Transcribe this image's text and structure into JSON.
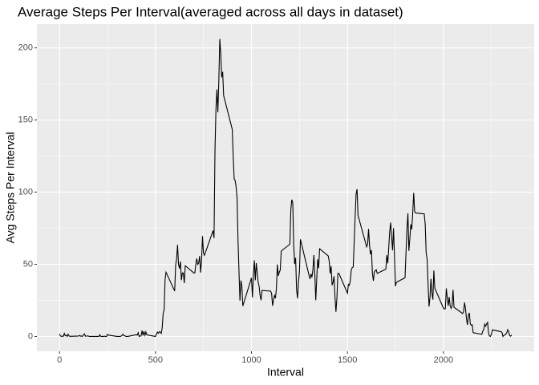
{
  "chart_data": {
    "type": "line",
    "title": "Average Steps Per Interval(averaged across all days in dataset)",
    "x_label": "Interval",
    "y_label": "Avg Steps Per Interval",
    "x": [
      0,
      5,
      10,
      15,
      20,
      25,
      30,
      35,
      40,
      45,
      50,
      55,
      100,
      105,
      110,
      115,
      120,
      125,
      130,
      135,
      140,
      145,
      150,
      155,
      200,
      205,
      210,
      215,
      220,
      225,
      230,
      235,
      240,
      245,
      250,
      255,
      300,
      305,
      310,
      315,
      320,
      325,
      330,
      335,
      340,
      345,
      350,
      355,
      400,
      405,
      410,
      415,
      420,
      425,
      430,
      435,
      440,
      445,
      450,
      455,
      500,
      505,
      510,
      515,
      520,
      525,
      530,
      535,
      540,
      545,
      550,
      555,
      600,
      605,
      610,
      615,
      620,
      625,
      630,
      635,
      640,
      645,
      650,
      655,
      700,
      705,
      710,
      715,
      720,
      725,
      730,
      735,
      740,
      745,
      750,
      755,
      800,
      805,
      810,
      815,
      820,
      825,
      830,
      835,
      840,
      845,
      850,
      855,
      900,
      905,
      910,
      915,
      920,
      925,
      930,
      935,
      940,
      945,
      950,
      955,
      1000,
      1005,
      1010,
      1015,
      1020,
      1025,
      1030,
      1035,
      1040,
      1045,
      1050,
      1055,
      1100,
      1105,
      1110,
      1115,
      1120,
      1125,
      1130,
      1135,
      1140,
      1145,
      1150,
      1155,
      1200,
      1205,
      1210,
      1215,
      1220,
      1225,
      1230,
      1235,
      1240,
      1245,
      1250,
      1255,
      1300,
      1305,
      1310,
      1315,
      1320,
      1325,
      1330,
      1335,
      1340,
      1345,
      1350,
      1355,
      1400,
      1405,
      1410,
      1415,
      1420,
      1425,
      1430,
      1435,
      1440,
      1445,
      1450,
      1455,
      1500,
      1505,
      1510,
      1515,
      1520,
      1525,
      1530,
      1535,
      1540,
      1545,
      1550,
      1555,
      1600,
      1605,
      1610,
      1615,
      1620,
      1625,
      1630,
      1635,
      1640,
      1645,
      1650,
      1655,
      1700,
      1705,
      1710,
      1715,
      1720,
      1725,
      1730,
      1735,
      1740,
      1745,
      1750,
      1755,
      1800,
      1805,
      1810,
      1815,
      1820,
      1825,
      1830,
      1835,
      1840,
      1845,
      1850,
      1855,
      1900,
      1905,
      1910,
      1915,
      1920,
      1925,
      1930,
      1935,
      1940,
      1945,
      1950,
      1955,
      2000,
      2005,
      2010,
      2015,
      2020,
      2025,
      2030,
      2035,
      2040,
      2045,
      2050,
      2055,
      2100,
      2105,
      2110,
      2115,
      2120,
      2125,
      2130,
      2135,
      2140,
      2145,
      2150,
      2155,
      2200,
      2205,
      2210,
      2215,
      2220,
      2225,
      2230,
      2235,
      2240,
      2245,
      2250,
      2255,
      2300,
      2305,
      2310,
      2315,
      2320,
      2325,
      2330,
      2335,
      2340,
      2345,
      2350,
      2355
    ],
    "series": [
      {
        "color": "#000000",
        "values": [
          1.7,
          0.3,
          0.1,
          0.2,
          0.1,
          2.1,
          0.5,
          0.9,
          0,
          1.5,
          0.3,
          0.1,
          0.3,
          0.7,
          0.2,
          0.3,
          0,
          1.1,
          1.8,
          0.2,
          0.2,
          0.4,
          0.3,
          0,
          0,
          0,
          1.1,
          0,
          0,
          0.1,
          0,
          0.2,
          0,
          0,
          1.5,
          0.9,
          0,
          0,
          0,
          0,
          0.2,
          0.6,
          1.6,
          0.6,
          0.5,
          0.1,
          0,
          0,
          1.2,
          0.9,
          2.6,
          0,
          0.3,
          0.4,
          4.1,
          0.7,
          3.5,
          0.8,
          3.1,
          1.1,
          0,
          1.6,
          3,
          2.2,
          3.3,
          3,
          2.1,
          6,
          16,
          18.3,
          39.5,
          44.5,
          31.5,
          49.3,
          53.8,
          63.5,
          50,
          47,
          52,
          39,
          44,
          44,
          37,
          49,
          44,
          44,
          50,
          54,
          49.9,
          50.9,
          55.7,
          44.3,
          52.3,
          69.5,
          57.8,
          56.2,
          73.4,
          68.2,
          129.4,
          157.5,
          171.2,
          155.4,
          177.3,
          206.2,
          195.9,
          179.6,
          183.4,
          167,
          143.5,
          124,
          109.1,
          108.1,
          103.7,
          95.9,
          66.2,
          45.2,
          24.8,
          38.8,
          34.9,
          21.1,
          40.6,
          27,
          42.4,
          52.7,
          38.9,
          50.8,
          44.3,
          37.4,
          34.7,
          28.3,
          25.1,
          31.9,
          31.4,
          29.7,
          21.3,
          25.5,
          28.4,
          26.5,
          33.3,
          49.9,
          42,
          44.6,
          46,
          59.2,
          63.9,
          87.7,
          94.8,
          92.8,
          63.4,
          50.2,
          54.5,
          32.4,
          26.5,
          37.7,
          45.1,
          67.3,
          42.3,
          39.9,
          43.3,
          41,
          46.2,
          56.4,
          42.8,
          25.1,
          40,
          53.5,
          47.3,
          60.8,
          55.8,
          52,
          43.6,
          48.7,
          35.5,
          37.5,
          41.8,
          27.5,
          17.1,
          26.1,
          43.6,
          43.8,
          30,
          36.1,
          35.5,
          38.8,
          46,
          47.8,
          48.1,
          65.3,
          82.9,
          98.7,
          102.1,
          84,
          62.1,
          64.1,
          74.5,
          63.2,
          56.9,
          59.8,
          43.9,
          38.6,
          44.7,
          45.5,
          46.2,
          43.7,
          46.6,
          56.3,
          50.7,
          61.2,
          72.7,
          78.9,
          68.9,
          59.7,
          75.1,
          56.5,
          34.8,
          37.5,
          40.7,
          58,
          74.7,
          85.3,
          59.3,
          67.8,
          77.7,
          74.2,
          85.3,
          99.5,
          86.6,
          85.6,
          84.9,
          77.8,
          58,
          53.4,
          36.3,
          20.7,
          27.4,
          40,
          30.2,
          25.5,
          45.7,
          33.5,
          19.6,
          19,
          19.3,
          33.3,
          26.8,
          21.2,
          27.3,
          21.3,
          19.5,
          21.3,
          32.3,
          20.2,
          15.9,
          17.2,
          23.5,
          19.2,
          12.5,
          8,
          14.7,
          16.3,
          8.7,
          7.8,
          8.1,
          2.6,
          1.5,
          3.7,
          4.8,
          8.5,
          7.1,
          8.7,
          9.8,
          2.2,
          0.3,
          0.1,
          1.6,
          4.6,
          3.3,
          2.8,
          0,
          0.8,
          1,
          1.6,
          2.6,
          4.7,
          3.3,
          0.6,
          0.2,
          1.1
        ]
      }
    ],
    "xlim": [
      -117.75,
      2472.75
    ],
    "ylim": [
      -10.3,
      216.5
    ],
    "xticks": [
      0,
      500,
      1000,
      1500,
      2000
    ],
    "yticks": [
      0,
      50,
      100,
      150,
      200
    ],
    "grid": true,
    "background": "#ebebeb"
  }
}
